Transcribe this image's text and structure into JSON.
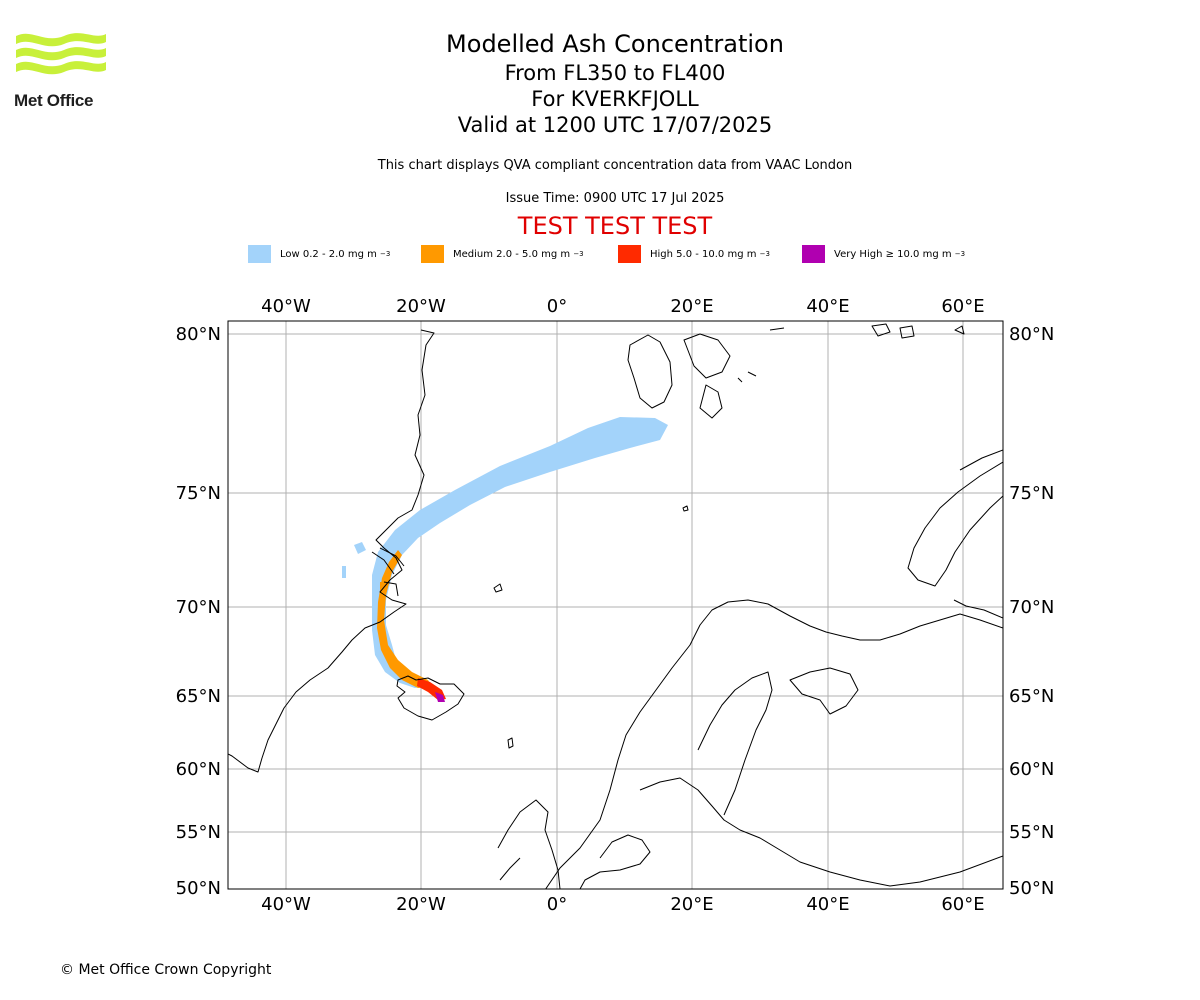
{
  "logo": {
    "text": "Met Office",
    "colors": {
      "waves": "#c8f03a",
      "text": "#1e1e1e"
    }
  },
  "title": {
    "line1": "Modelled Ash Concentration",
    "line2": "From FL350 to FL400",
    "line3": "For KVERKFJOLL",
    "line4": "Valid at 1200 UTC 17/07/2025"
  },
  "subtitle": "This chart displays QVA compliant concentration data from VAAC London",
  "issue_time": "Issue Time: 0900 UTC 17 Jul 2025",
  "test_banner": "TEST TEST TEST",
  "legend": [
    {
      "label": "Low 0.2 - 2.0 mg m",
      "exp": "−3",
      "color": "#a3d3fa"
    },
    {
      "label": "Medium 2.0 - 5.0 mg m",
      "exp": "−3",
      "color": "#ff9900"
    },
    {
      "label": "High 5.0 - 10.0 mg m",
      "exp": "−3",
      "color": "#ff2a00"
    },
    {
      "label": "Very High  ≥  10.0 mg m",
      "exp": "−3",
      "color": "#b000b0"
    }
  ],
  "map": {
    "lon_labels": [
      "40°W",
      "20°W",
      "0°",
      "20°E",
      "40°E",
      "60°E"
    ],
    "lat_labels": [
      "80°N",
      "75°N",
      "70°N",
      "65°N",
      "60°N",
      "55°N",
      "50°N"
    ],
    "gridline_color": "#b0b0b0",
    "ash_colors": {
      "low": "#a3d3fa",
      "medium": "#ff9900",
      "high": "#ff2a00",
      "very_high": "#b000b0"
    }
  },
  "copyright": "© Met Office Crown Copyright"
}
